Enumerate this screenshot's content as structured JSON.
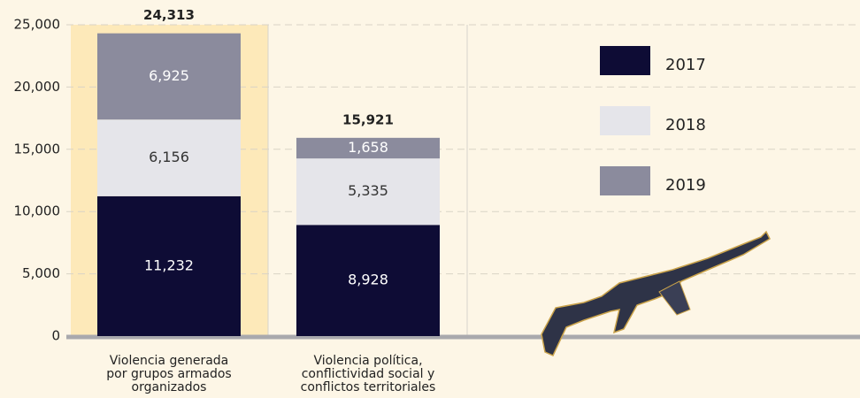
{
  "chart_data": {
    "type": "stacked_bar",
    "categories": [
      [
        "Violencia generada",
        "por grupos armados",
        "organizados"
      ],
      [
        "Violencia política,",
        "conflictividad social y",
        "conflictos territoriales"
      ]
    ],
    "series": [
      {
        "name": "2017",
        "color": "#0e0c35",
        "values": [
          11232,
          8928
        ],
        "value_labels": [
          "11,232",
          "8,928"
        ]
      },
      {
        "name": "2018",
        "color": "#e5e5ea",
        "values": [
          6156,
          5335
        ],
        "value_labels": [
          "6,156",
          "5,335"
        ]
      },
      {
        "name": "2019",
        "color": "#8b8b9d",
        "values": [
          6925,
          1658
        ],
        "value_labels": [
          "6,925",
          "1,658"
        ]
      }
    ],
    "totals": [
      24313,
      15921
    ],
    "total_labels": [
      "24,313",
      "15,921"
    ],
    "ylim": [
      0,
      25000
    ],
    "yticks": [
      0,
      {
        "value": 5000,
        "label": "5,000"
      },
      {
        "value": 10000,
        "label": "10,000"
      },
      {
        "value": 15000,
        "label": "15,000"
      },
      {
        "value": 20000,
        "label": "20,000"
      },
      {
        "value": 25000,
        "label": "25,000"
      }
    ],
    "grid": true,
    "legend": "upper right"
  }
}
